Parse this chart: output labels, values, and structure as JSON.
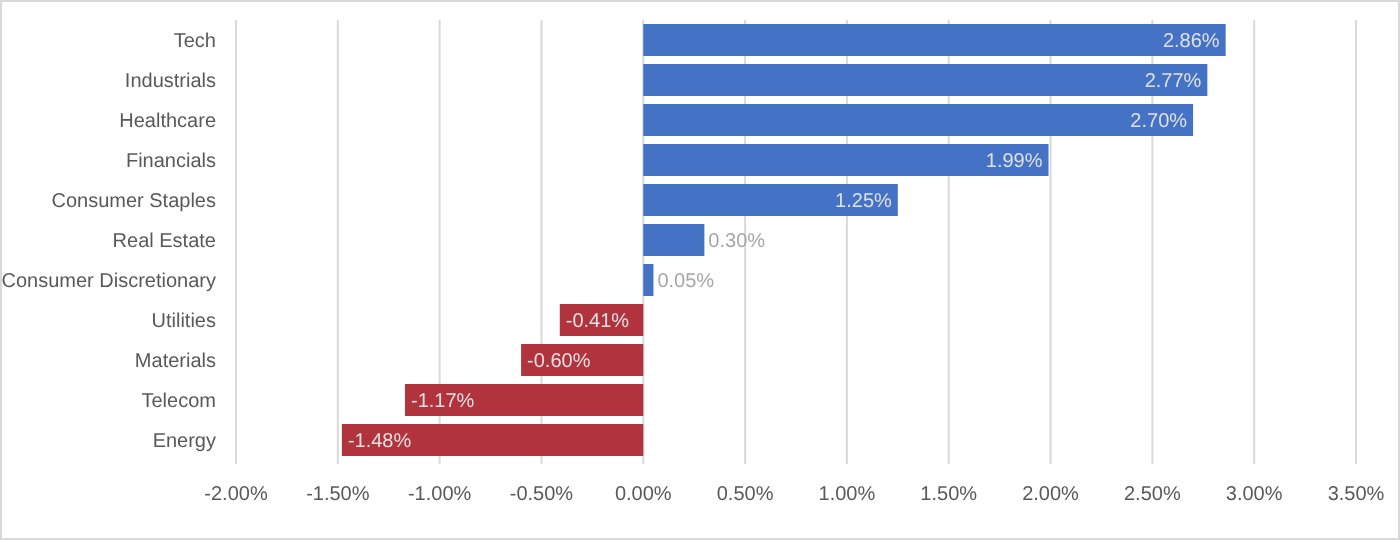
{
  "chart_data": {
    "type": "bar",
    "orientation": "horizontal",
    "categories": [
      "Tech",
      "Industrials",
      "Healthcare",
      "Financials",
      "Consumer Staples",
      "Real Estate",
      "Consumer Discretionary",
      "Utilities",
      "Materials",
      "Telecom",
      "Energy"
    ],
    "values": [
      2.86,
      2.77,
      2.7,
      1.99,
      1.25,
      0.3,
      0.05,
      -0.41,
      -0.6,
      -1.17,
      -1.48
    ],
    "value_labels": [
      "2.86%",
      "2.77%",
      "2.70%",
      "1.99%",
      "1.25%",
      "0.30%",
      "0.05%",
      "-0.41%",
      "-0.60%",
      "-1.17%",
      "-1.48%"
    ],
    "colors": [
      "#4472c4",
      "#4472c4",
      "#4472c4",
      "#4472c4",
      "#4472c4",
      "#4472c4",
      "#4472c4",
      "#b0333d",
      "#b0333d",
      "#b0333d",
      "#b0333d"
    ],
    "xlim": [
      -2,
      3.5
    ],
    "xticks": [
      {
        "value": -2,
        "label": "-2.00%"
      },
      {
        "value": -1.5,
        "label": "-1.50%"
      },
      {
        "value": -1,
        "label": "-1.00%"
      },
      {
        "value": -0.5,
        "label": "-0.50%"
      },
      {
        "value": 0,
        "label": "0.00%"
      },
      {
        "value": 0.5,
        "label": "0.50%"
      },
      {
        "value": 1,
        "label": "1.00%"
      },
      {
        "value": 1.5,
        "label": "1.50%"
      },
      {
        "value": 2,
        "label": "2.00%"
      },
      {
        "value": 2.5,
        "label": "2.50%"
      },
      {
        "value": 3,
        "label": "3.00%"
      },
      {
        "value": 3.5,
        "label": "3.50%"
      }
    ],
    "grid": "x"
  }
}
